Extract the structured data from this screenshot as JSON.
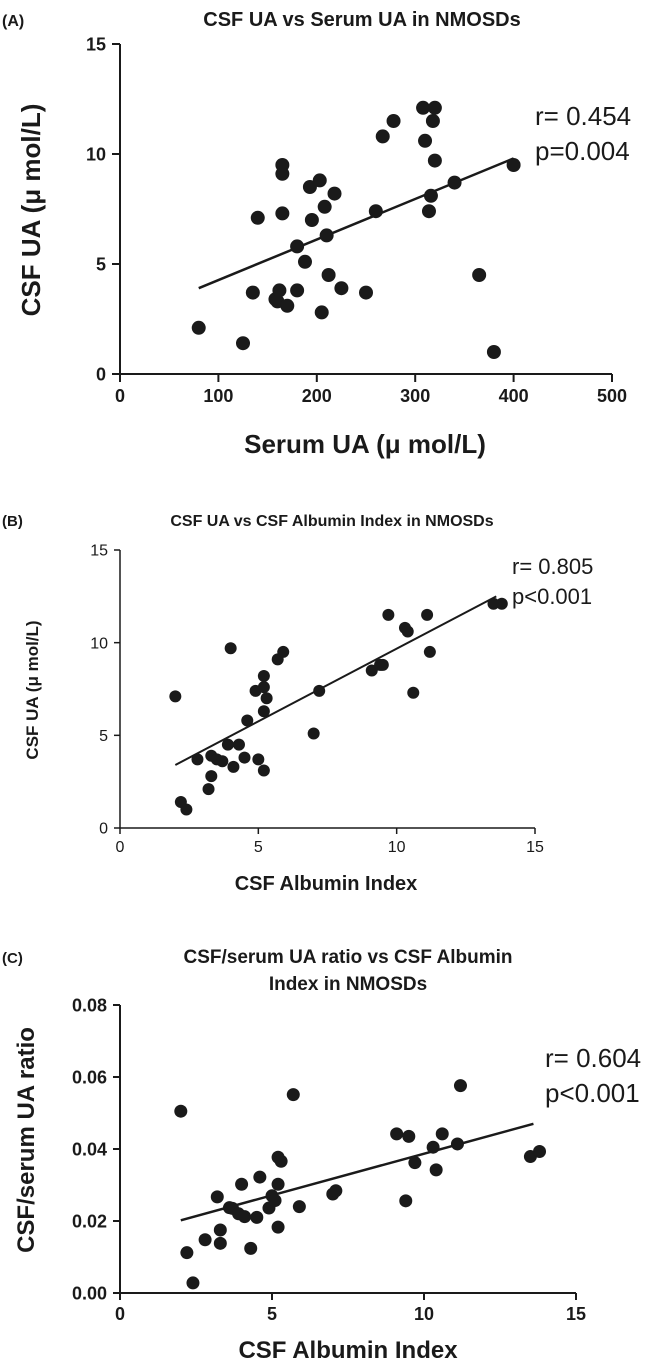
{
  "figure": {
    "background": "#ffffff",
    "ink": "#1a1a1a"
  },
  "chart_data": [
    {
      "panel_label": "(A)",
      "type": "scatter",
      "title": [
        "CSF UA vs Serum UA in NMOSDs"
      ],
      "xlabel": "Serum UA (μ mol/L)",
      "ylabel": "CSF UA (μ mol/L)",
      "xlim": [
        0,
        500
      ],
      "ylim": [
        0,
        15
      ],
      "xticks": [
        0,
        100,
        200,
        300,
        400,
        500
      ],
      "yticks": [
        0,
        5,
        10,
        15
      ],
      "xtick_labels": [
        "0",
        "100",
        "200",
        "300",
        "400",
        "500"
      ],
      "ytick_labels": [
        "0",
        "5",
        "10",
        "15"
      ],
      "stats": [
        "r= 0.454",
        "p=0.004"
      ],
      "regression_line": {
        "x": [
          80,
          400
        ],
        "y": [
          3.9,
          9.8
        ]
      },
      "points": [
        {
          "x": 80,
          "y": 2.1
        },
        {
          "x": 125,
          "y": 1.4
        },
        {
          "x": 135,
          "y": 3.7
        },
        {
          "x": 140,
          "y": 7.1
        },
        {
          "x": 158,
          "y": 3.4
        },
        {
          "x": 160,
          "y": 3.3
        },
        {
          "x": 162,
          "y": 3.8
        },
        {
          "x": 165,
          "y": 9.5
        },
        {
          "x": 165,
          "y": 9.1
        },
        {
          "x": 165,
          "y": 7.3
        },
        {
          "x": 170,
          "y": 3.1
        },
        {
          "x": 180,
          "y": 5.8
        },
        {
          "x": 180,
          "y": 3.8
        },
        {
          "x": 188,
          "y": 5.1
        },
        {
          "x": 193,
          "y": 8.5
        },
        {
          "x": 195,
          "y": 7.0
        },
        {
          "x": 203,
          "y": 8.8
        },
        {
          "x": 205,
          "y": 2.8
        },
        {
          "x": 208,
          "y": 7.6
        },
        {
          "x": 210,
          "y": 6.3
        },
        {
          "x": 212,
          "y": 4.5
        },
        {
          "x": 218,
          "y": 8.2
        },
        {
          "x": 225,
          "y": 3.9
        },
        {
          "x": 250,
          "y": 3.7
        },
        {
          "x": 260,
          "y": 7.4
        },
        {
          "x": 267,
          "y": 10.8
        },
        {
          "x": 278,
          "y": 11.5
        },
        {
          "x": 308,
          "y": 12.1
        },
        {
          "x": 310,
          "y": 10.6
        },
        {
          "x": 314,
          "y": 7.4
        },
        {
          "x": 316,
          "y": 8.1
        },
        {
          "x": 318,
          "y": 11.5
        },
        {
          "x": 320,
          "y": 12.1
        },
        {
          "x": 320,
          "y": 9.7
        },
        {
          "x": 340,
          "y": 8.7
        },
        {
          "x": 365,
          "y": 4.5
        },
        {
          "x": 380,
          "y": 1.0
        },
        {
          "x": 400,
          "y": 9.5
        }
      ]
    },
    {
      "panel_label": "(B)",
      "type": "scatter",
      "title": [
        "CSF UA vs CSF Albumin Index in NMOSDs"
      ],
      "xlabel": "CSF Albumin Index",
      "ylabel": "CSF UA (μ mol/L)",
      "xlim": [
        0,
        15
      ],
      "ylim": [
        0,
        15
      ],
      "xticks": [
        0,
        5,
        10,
        15
      ],
      "yticks": [
        0,
        5,
        10,
        15
      ],
      "xtick_labels": [
        "0",
        "5",
        "10",
        "15"
      ],
      "ytick_labels": [
        "0",
        "5",
        "10",
        "15"
      ],
      "stats": [
        "r= 0.805",
        "p<0.001"
      ],
      "regression_line": {
        "x": [
          2.0,
          13.6
        ],
        "y": [
          3.4,
          12.5
        ]
      },
      "points": [
        {
          "x": 2.0,
          "y": 7.1
        },
        {
          "x": 2.2,
          "y": 1.4
        },
        {
          "x": 2.4,
          "y": 1.0
        },
        {
          "x": 2.8,
          "y": 3.7
        },
        {
          "x": 3.2,
          "y": 2.1
        },
        {
          "x": 3.3,
          "y": 2.8
        },
        {
          "x": 3.3,
          "y": 3.9
        },
        {
          "x": 3.5,
          "y": 3.7
        },
        {
          "x": 3.7,
          "y": 3.6
        },
        {
          "x": 3.9,
          "y": 4.5
        },
        {
          "x": 4.0,
          "y": 9.7
        },
        {
          "x": 4.1,
          "y": 3.3
        },
        {
          "x": 4.3,
          "y": 4.5
        },
        {
          "x": 4.5,
          "y": 3.8
        },
        {
          "x": 4.6,
          "y": 5.8
        },
        {
          "x": 4.9,
          "y": 7.4
        },
        {
          "x": 5.0,
          "y": 3.7
        },
        {
          "x": 5.2,
          "y": 8.2
        },
        {
          "x": 5.2,
          "y": 7.6
        },
        {
          "x": 5.2,
          "y": 6.3
        },
        {
          "x": 5.2,
          "y": 3.1
        },
        {
          "x": 5.3,
          "y": 7.0
        },
        {
          "x": 5.7,
          "y": 9.1
        },
        {
          "x": 5.9,
          "y": 9.5
        },
        {
          "x": 7.0,
          "y": 5.1
        },
        {
          "x": 7.2,
          "y": 7.4
        },
        {
          "x": 9.1,
          "y": 8.5
        },
        {
          "x": 9.4,
          "y": 8.8
        },
        {
          "x": 9.5,
          "y": 8.8
        },
        {
          "x": 9.7,
          "y": 11.5
        },
        {
          "x": 10.3,
          "y": 10.8
        },
        {
          "x": 10.4,
          "y": 10.6
        },
        {
          "x": 10.6,
          "y": 7.3
        },
        {
          "x": 11.1,
          "y": 11.5
        },
        {
          "x": 11.2,
          "y": 9.5
        },
        {
          "x": 13.5,
          "y": 12.1
        },
        {
          "x": 13.8,
          "y": 12.1
        }
      ]
    },
    {
      "panel_label": "(C)",
      "type": "scatter",
      "title": [
        "CSF/serum UA ratio vs CSF Albumin",
        "Index in NMOSDs"
      ],
      "xlabel": "CSF Albumin Index",
      "ylabel": "CSF/serum UA ratio",
      "xlim": [
        0,
        15
      ],
      "ylim": [
        0,
        0.08
      ],
      "xticks": [
        0,
        5,
        10,
        15
      ],
      "yticks": [
        0,
        0.02,
        0.04,
        0.06,
        0.08
      ],
      "xtick_labels": [
        "0",
        "5",
        "10",
        "15"
      ],
      "ytick_labels": [
        "0.00",
        "0.02",
        "0.04",
        "0.06",
        "0.08"
      ],
      "stats": [
        "r= 0.604",
        "p<0.001"
      ],
      "regression_line": {
        "x": [
          2.0,
          13.6
        ],
        "y": [
          0.0202,
          0.047
        ]
      },
      "points": [
        {
          "x": 2.0,
          "y": 0.0505
        },
        {
          "x": 2.2,
          "y": 0.0112
        },
        {
          "x": 2.4,
          "y": 0.0028
        },
        {
          "x": 2.8,
          "y": 0.0148
        },
        {
          "x": 3.2,
          "y": 0.0267
        },
        {
          "x": 3.3,
          "y": 0.0138
        },
        {
          "x": 3.3,
          "y": 0.0175
        },
        {
          "x": 3.6,
          "y": 0.0237
        },
        {
          "x": 3.7,
          "y": 0.0235
        },
        {
          "x": 3.9,
          "y": 0.022
        },
        {
          "x": 4.0,
          "y": 0.0302
        },
        {
          "x": 4.1,
          "y": 0.0212
        },
        {
          "x": 4.3,
          "y": 0.0124
        },
        {
          "x": 4.5,
          "y": 0.021
        },
        {
          "x": 4.6,
          "y": 0.0322
        },
        {
          "x": 4.9,
          "y": 0.0236
        },
        {
          "x": 5.0,
          "y": 0.027
        },
        {
          "x": 5.1,
          "y": 0.0257
        },
        {
          "x": 5.2,
          "y": 0.0377
        },
        {
          "x": 5.2,
          "y": 0.0302
        },
        {
          "x": 5.2,
          "y": 0.0183
        },
        {
          "x": 5.3,
          "y": 0.0366
        },
        {
          "x": 5.7,
          "y": 0.0551
        },
        {
          "x": 5.9,
          "y": 0.024
        },
        {
          "x": 7.0,
          "y": 0.0275
        },
        {
          "x": 7.1,
          "y": 0.0284
        },
        {
          "x": 9.1,
          "y": 0.0442
        },
        {
          "x": 9.4,
          "y": 0.0256
        },
        {
          "x": 9.5,
          "y": 0.0435
        },
        {
          "x": 9.7,
          "y": 0.0362
        },
        {
          "x": 10.3,
          "y": 0.0405
        },
        {
          "x": 10.4,
          "y": 0.0342
        },
        {
          "x": 10.6,
          "y": 0.0442
        },
        {
          "x": 11.1,
          "y": 0.0414
        },
        {
          "x": 11.2,
          "y": 0.0576
        },
        {
          "x": 13.5,
          "y": 0.0379
        },
        {
          "x": 13.8,
          "y": 0.0393
        }
      ]
    }
  ]
}
